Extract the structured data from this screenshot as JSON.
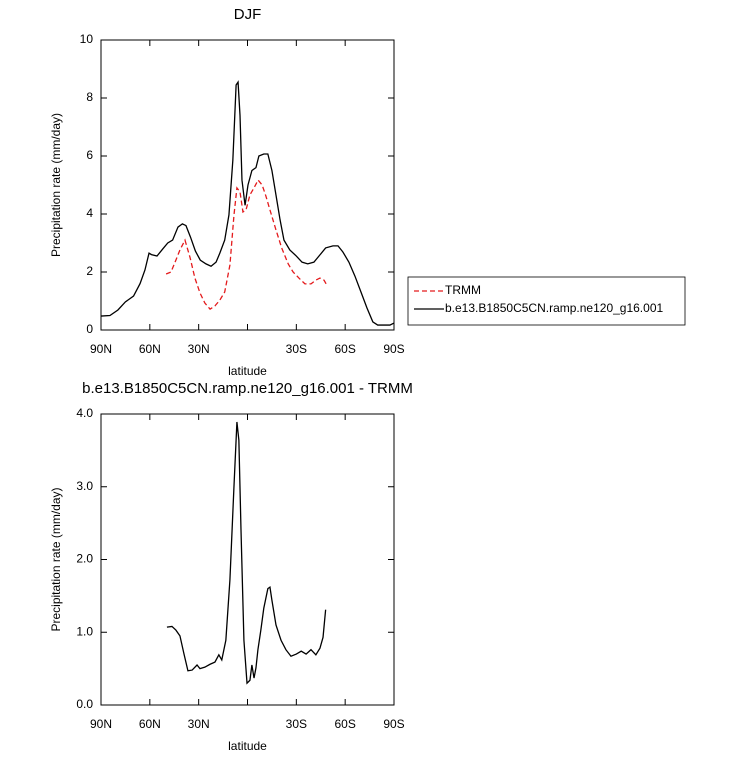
{
  "chart_data": [
    {
      "type": "line",
      "title": "DJF",
      "xlabel": "latitude",
      "ylabel": "Precipitation rate (mm/day)",
      "xlim": [
        90,
        -90
      ],
      "ylim": [
        0,
        10
      ],
      "xticks": [
        {
          "value": 90,
          "label": "90N"
        },
        {
          "value": 60,
          "label": "60N"
        },
        {
          "value": 30,
          "label": "30N"
        },
        {
          "value": 0,
          "label": null
        },
        {
          "value": -30,
          "label": "30S"
        },
        {
          "value": -60,
          "label": "60S"
        },
        {
          "value": -90,
          "label": "90S"
        }
      ],
      "yticks": [
        0,
        2,
        4,
        6,
        8,
        10
      ],
      "legend": "right",
      "series": [
        {
          "name": "TRMM",
          "color": "#e41a1c",
          "line_style": "dashed",
          "x": [
            50,
            47,
            44.5,
            41.5,
            38.4,
            35.3,
            32.3,
            29.2,
            26.2,
            23,
            20,
            17,
            14,
            10.8,
            8.3,
            6.5,
            4.6,
            2.8,
            0.9,
            -1.5,
            -4,
            -6.5,
            -9,
            -11.3,
            -13.8,
            -17.5,
            -21,
            -25,
            -28,
            -31.6,
            -35.3,
            -39,
            -42,
            -44.5,
            -47,
            -49
          ],
          "values": [
            1.93,
            2.0,
            2.34,
            2.76,
            3.1,
            2.5,
            1.79,
            1.28,
            0.93,
            0.72,
            0.83,
            1.03,
            1.31,
            2.24,
            3.97,
            4.9,
            4.76,
            4.07,
            4.14,
            4.66,
            4.9,
            5.17,
            5.0,
            4.62,
            4.14,
            3.45,
            2.83,
            2.28,
            2.0,
            1.79,
            1.59,
            1.59,
            1.72,
            1.79,
            1.72,
            1.52
          ]
        },
        {
          "name": "b.e13.B1850C5CN.ramp.ne120_g16.001",
          "color": "#000000",
          "line_style": "solid",
          "x": [
            90,
            84.5,
            79.6,
            75,
            70,
            66,
            63,
            60.5,
            59,
            55.6,
            52,
            49,
            46,
            42.7,
            40,
            37.8,
            35,
            32,
            29,
            25.5,
            22.4,
            19.3,
            17,
            14,
            11.4,
            9,
            7,
            5.8,
            4.6,
            3.4,
            1.5,
            -0.3,
            -2.7,
            -5.2,
            -7,
            -10,
            -12.5,
            -15,
            -17.5,
            -20,
            -22.4,
            -26,
            -30,
            -33.5,
            -37,
            -40.8,
            -44.5,
            -48,
            -52.5,
            -55.6,
            -58.6,
            -62.3,
            -66,
            -69.7,
            -73.4,
            -77,
            -80,
            -87.5,
            -90
          ],
          "values": [
            0.48,
            0.5,
            0.69,
            0.97,
            1.17,
            1.6,
            2.07,
            2.65,
            2.6,
            2.55,
            2.8,
            3.0,
            3.1,
            3.55,
            3.66,
            3.6,
            3.2,
            2.72,
            2.41,
            2.28,
            2.2,
            2.34,
            2.65,
            3.1,
            3.97,
            5.86,
            8.45,
            8.55,
            7.4,
            5.17,
            4.3,
            5.0,
            5.5,
            5.6,
            6.0,
            6.07,
            6.07,
            5.5,
            4.65,
            3.8,
            3.1,
            2.76,
            2.55,
            2.34,
            2.28,
            2.34,
            2.59,
            2.83,
            2.9,
            2.9,
            2.69,
            2.34,
            1.86,
            1.31,
            0.76,
            0.28,
            0.17,
            0.17,
            0.24
          ]
        }
      ]
    },
    {
      "type": "line",
      "title": "b.e13.B1850C5CN.ramp.ne120_g16.001 - TRMM",
      "xlabel": "latitude",
      "ylabel": "Precipitation rate (mm/day)",
      "xlim": [
        90,
        -90
      ],
      "ylim": [
        0,
        4
      ],
      "xticks": [
        {
          "value": 90,
          "label": "90N"
        },
        {
          "value": 60,
          "label": "60N"
        },
        {
          "value": 30,
          "label": "30N"
        },
        {
          "value": 0,
          "label": null
        },
        {
          "value": -30,
          "label": "30S"
        },
        {
          "value": -60,
          "label": "60S"
        },
        {
          "value": -90,
          "label": "90S"
        }
      ],
      "yticks": [
        {
          "value": 0,
          "label": "0.0"
        },
        {
          "value": 1,
          "label": "1.0"
        },
        {
          "value": 2,
          "label": "2.0"
        },
        {
          "value": 3,
          "label": "3.0"
        },
        {
          "value": 4,
          "label": "4.0"
        }
      ],
      "series": [
        {
          "color": "#000000",
          "line_style": "solid",
          "x": [
            49.5,
            46.4,
            44,
            41.5,
            39,
            36.6,
            34,
            31,
            29.2,
            26.2,
            23,
            20,
            17.6,
            15.8,
            13.3,
            10.8,
            8.4,
            6.5,
            5.3,
            4,
            2.2,
            0.3,
            -1.5,
            -2.7,
            -4,
            -5.2,
            -6.4,
            -8.2,
            -10,
            -12.5,
            -13.8,
            -15,
            -17.5,
            -20.6,
            -23.6,
            -26.7,
            -30,
            -33,
            -36,
            -39,
            -42,
            -44.5,
            -46.4,
            -48
          ],
          "values": [
            1.07,
            1.08,
            1.03,
            0.95,
            0.7,
            0.47,
            0.48,
            0.55,
            0.5,
            0.52,
            0.56,
            0.59,
            0.69,
            0.62,
            0.89,
            1.72,
            2.96,
            3.89,
            3.64,
            2.41,
            0.89,
            0.3,
            0.34,
            0.55,
            0.37,
            0.51,
            0.76,
            1.03,
            1.33,
            1.6,
            1.62,
            1.44,
            1.1,
            0.89,
            0.76,
            0.67,
            0.7,
            0.74,
            0.7,
            0.76,
            0.69,
            0.78,
            0.93,
            1.31
          ]
        }
      ]
    }
  ]
}
